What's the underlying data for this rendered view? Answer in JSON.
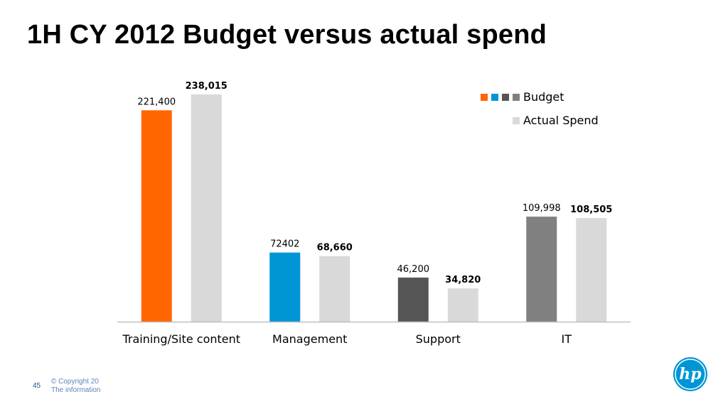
{
  "slide": {
    "title": "1H CY 2012 Budget versus actual spend",
    "page_number": "45",
    "footer_line1": "© Copyright 20",
    "footer_line2": "The information",
    "logo_text": "hp"
  },
  "colors": {
    "actual": "#d9d9d9",
    "budget_by_category": [
      "#ff6600",
      "#0096d6",
      "#555555",
      "#808080"
    ],
    "axis": "#bfbfbf",
    "hp_blue": "#0096d6"
  },
  "chart_data": {
    "type": "bar",
    "categories": [
      "Training/Site content",
      "Management",
      "Support",
      "IT"
    ],
    "series": [
      {
        "name": "Budget",
        "values": [
          221400,
          72402,
          46200,
          109998
        ],
        "labels": [
          "221,400",
          "72402",
          "46,200",
          "109,998"
        ]
      },
      {
        "name": "Actual Spend",
        "values": [
          238015,
          68660,
          34820,
          108505
        ],
        "labels": [
          "238,015",
          "68,660",
          "34,820",
          "108,505"
        ]
      }
    ],
    "ylim": [
      0,
      238015
    ],
    "legend_position": "top-right",
    "grid": false
  }
}
